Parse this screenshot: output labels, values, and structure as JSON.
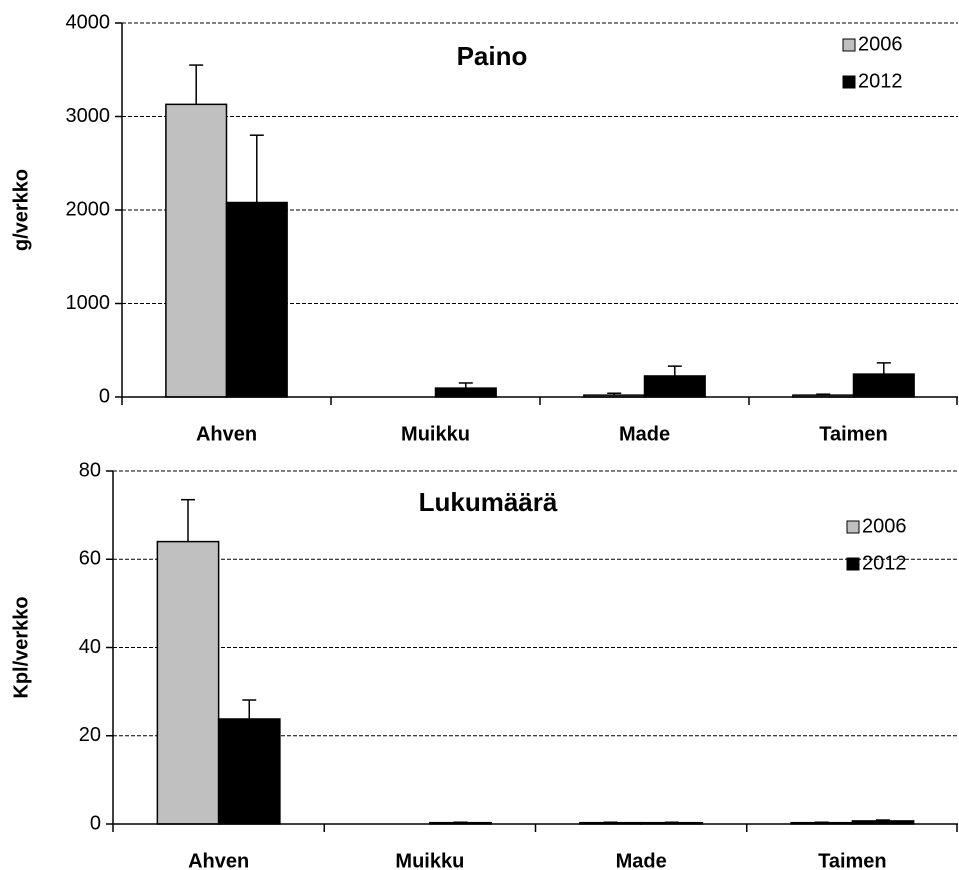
{
  "chart_data": [
    {
      "type": "bar",
      "title": "Paino",
      "y_label": "g/verkko",
      "categories": [
        "Ahven",
        "Muikku",
        "Made",
        "Taimen"
      ],
      "series": [
        {
          "name": "2006",
          "color": "#c0c0c0",
          "values": [
            3130,
            0,
            20,
            20
          ],
          "errors": [
            420,
            0,
            20,
            10
          ]
        },
        {
          "name": "2012",
          "color": "#000000",
          "values": [
            2080,
            95,
            225,
            245
          ],
          "errors": [
            720,
            55,
            105,
            120
          ]
        }
      ],
      "ylim": [
        0,
        4000
      ],
      "yticks": [
        0,
        1000,
        2000,
        3000,
        4000
      ],
      "grid": true,
      "legend": "upper right"
    },
    {
      "type": "bar",
      "title": "Lukumäärä",
      "y_label": "Kpl/verkko",
      "categories": [
        "Ahven",
        "Muikku",
        "Made",
        "Taimen"
      ],
      "series": [
        {
          "name": "2006",
          "color": "#c0c0c0",
          "values": [
            64,
            0,
            0.3,
            0.3
          ],
          "errors": [
            9.5,
            0,
            0.1,
            0.1
          ]
        },
        {
          "name": "2012",
          "color": "#000000",
          "values": [
            23.8,
            0.3,
            0.3,
            0.7
          ],
          "errors": [
            4.3,
            0.1,
            0.1,
            0.2
          ]
        }
      ],
      "ylim": [
        0,
        80
      ],
      "yticks": [
        0,
        20,
        40,
        60,
        80
      ],
      "grid": true,
      "legend": "upper right"
    }
  ]
}
